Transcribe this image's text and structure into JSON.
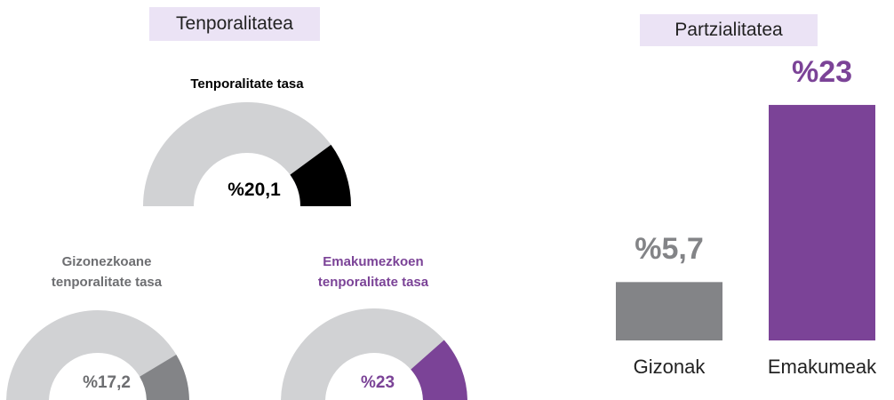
{
  "section_title": "Tenporalitatea",
  "chart_data": [
    {
      "type": "gauge",
      "title": "Tenporalitate tasa",
      "value": 20.1,
      "value_label": "%20,1",
      "range": [
        0,
        100
      ],
      "color": "#000000",
      "track_color": "#d1d2d4",
      "title_color": "#000000"
    },
    {
      "type": "gauge",
      "title": "Gizonezkoane tenporalitate tasa",
      "value": 17.2,
      "value_label": "%17,2",
      "range": [
        0,
        100
      ],
      "color": "#838487",
      "track_color": "#d1d2d4",
      "title_color": "#6d6e71"
    },
    {
      "type": "gauge",
      "title": "Emakumezkoen tenporalitate tasa",
      "value": 23,
      "value_label": "%23",
      "range": [
        0,
        100
      ],
      "color": "#7b4397",
      "track_color": "#d1d2d4",
      "title_color": "#7b4397"
    },
    {
      "type": "bar",
      "title": "Partzialitatea",
      "categories": [
        "Gizonak",
        "Emakumeak"
      ],
      "values": [
        5.7,
        23
      ],
      "value_labels": [
        "%5,7",
        "%23"
      ],
      "colors": [
        "#838487",
        "#7b4397"
      ],
      "ylim": [
        0,
        25
      ]
    }
  ]
}
